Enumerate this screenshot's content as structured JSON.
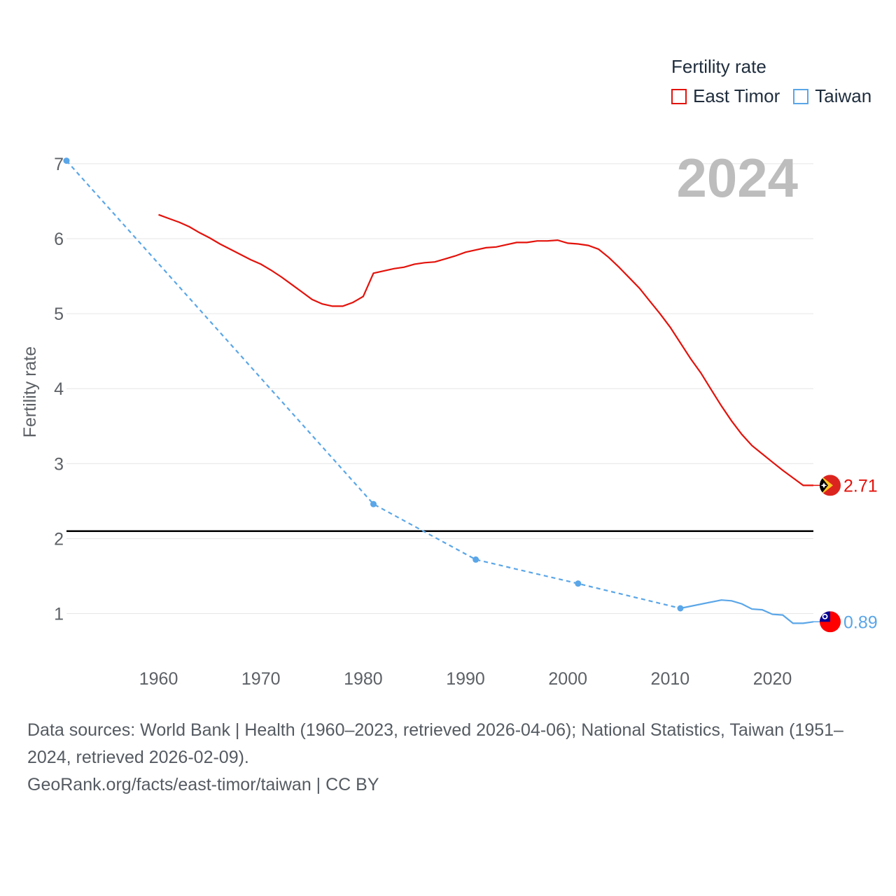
{
  "chart_data": {
    "type": "line",
    "title": "Fertility rate",
    "ylabel": "Fertility rate",
    "xlabel": "",
    "xlim": [
      1951,
      2024
    ],
    "ylim": [
      0,
      7.2
    ],
    "yticks": [
      1,
      2,
      3,
      4,
      5,
      6,
      7
    ],
    "xticks": [
      1960,
      1970,
      1980,
      1990,
      2000,
      2010,
      2020
    ],
    "year_label": "2024",
    "reference_line": {
      "value": 2.1,
      "color": "#000000"
    },
    "legend": {
      "title": "Fertility rate",
      "position": "top-right"
    },
    "series": [
      {
        "name": "East Timor",
        "color": "#e3120b",
        "style": "solid",
        "end_label": "2.71",
        "x": [
          1960,
          1961,
          1962,
          1963,
          1964,
          1965,
          1966,
          1967,
          1968,
          1969,
          1970,
          1971,
          1972,
          1973,
          1974,
          1975,
          1976,
          1977,
          1978,
          1979,
          1980,
          1981,
          1982,
          1983,
          1984,
          1985,
          1986,
          1987,
          1988,
          1989,
          1990,
          1991,
          1992,
          1993,
          1994,
          1995,
          1996,
          1997,
          1998,
          1999,
          2000,
          2001,
          2002,
          2003,
          2004,
          2005,
          2006,
          2007,
          2008,
          2009,
          2010,
          2011,
          2012,
          2013,
          2014,
          2015,
          2016,
          2017,
          2018,
          2019,
          2020,
          2021,
          2022,
          2023,
          2024
        ],
        "values": [
          6.32,
          6.27,
          6.22,
          6.16,
          6.08,
          6.01,
          5.93,
          5.86,
          5.79,
          5.72,
          5.66,
          5.58,
          5.49,
          5.39,
          5.29,
          5.19,
          5.13,
          5.1,
          5.1,
          5.15,
          5.23,
          5.54,
          5.57,
          5.6,
          5.62,
          5.66,
          5.68,
          5.69,
          5.73,
          5.77,
          5.82,
          5.85,
          5.88,
          5.89,
          5.92,
          5.95,
          5.95,
          5.97,
          5.97,
          5.98,
          5.94,
          5.93,
          5.91,
          5.86,
          5.75,
          5.62,
          5.48,
          5.34,
          5.17,
          5.0,
          4.82,
          4.61,
          4.4,
          4.21,
          3.99,
          3.77,
          3.57,
          3.39,
          3.24,
          3.13,
          3.02,
          2.91,
          2.81,
          2.71,
          2.71
        ]
      },
      {
        "name": "Taiwan",
        "color": "#5aa6e8",
        "style": "dashed",
        "end_label": "0.89",
        "x": [
          1951,
          1981,
          1991,
          2001,
          2011,
          2015,
          2016,
          2017,
          2018,
          2019,
          2020,
          2021,
          2022,
          2023,
          2024
        ],
        "values": [
          7.04,
          2.46,
          1.72,
          1.4,
          1.07,
          1.18,
          1.17,
          1.13,
          1.06,
          1.05,
          0.99,
          0.98,
          0.87,
          0.87,
          0.89
        ],
        "dashed_until": 2011,
        "markers": [
          1951,
          1981,
          1991,
          2001,
          2011
        ]
      }
    ]
  },
  "flags": {
    "east_timor": {
      "name": "east-timor-flag",
      "colors": [
        "#dc241f",
        "#ffc726",
        "#000000",
        "#ffffff"
      ]
    },
    "taiwan": {
      "name": "taiwan-flag",
      "colors": [
        "#fe0000",
        "#000095",
        "#ffffff"
      ]
    }
  },
  "source": {
    "line1": "Data sources: World Bank | Health (1960–2023, retrieved 2026-04-06); National Statistics, Taiwan (1951–",
    "line2": "2024, retrieved 2026-02-09).",
    "line3": "GeoRank.org/facts/east-timor/taiwan | CC BY"
  }
}
